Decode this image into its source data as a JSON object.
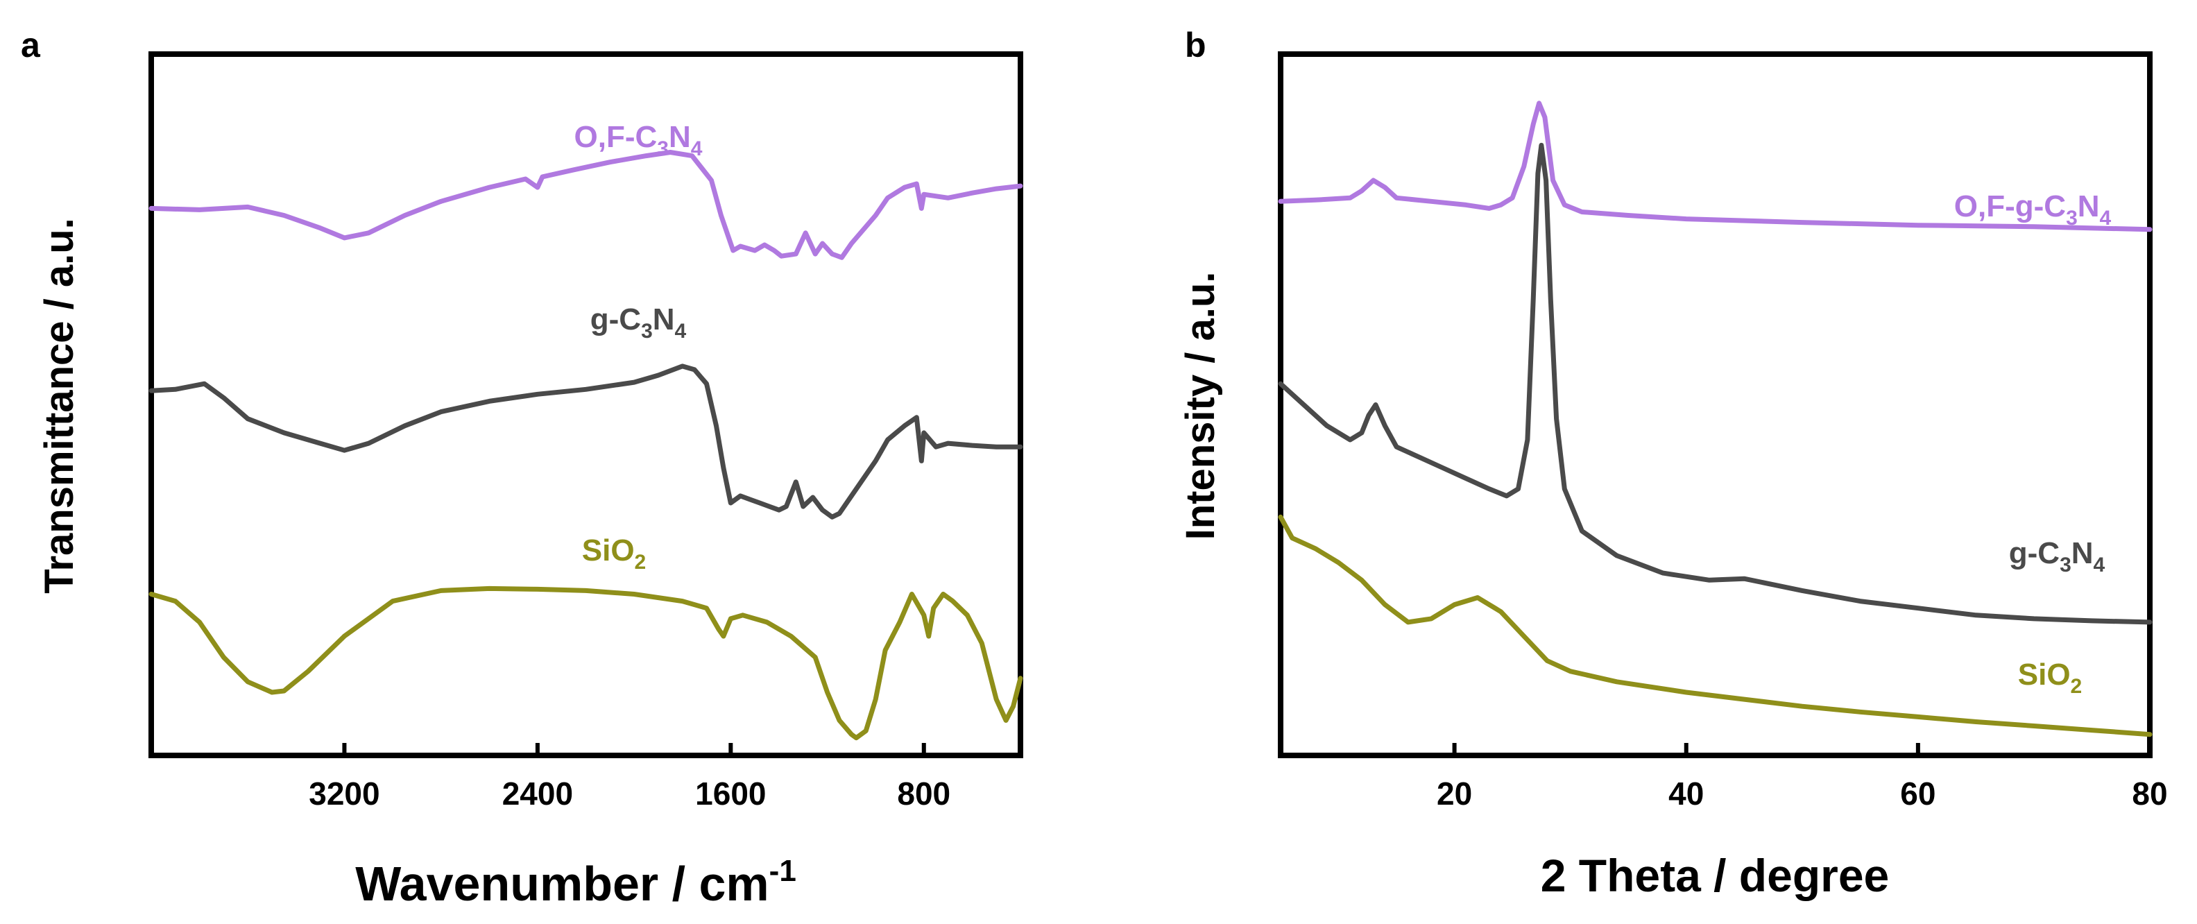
{
  "colors": {
    "purple": "#b079e0",
    "gray": "#4a4a4a",
    "olive": "#8f8f1a",
    "axis": "#000000"
  },
  "chart_data": [
    {
      "type": "line",
      "panel_label": "a",
      "xlabel": "Wavenumber / cm",
      "xlabel_sup": "-1",
      "ylabel": "Transmittance / a.u.",
      "xlim": [
        4000,
        400
      ],
      "ylim": [
        0,
        10
      ],
      "xticks": [
        3200,
        2400,
        1600,
        800
      ],
      "tick_labels": [
        "3200",
        "2400",
        "1600",
        "800"
      ],
      "yticks_shown": false,
      "series": [
        {
          "name": "O,F-C3N4",
          "label_parts": [
            "O,F-C",
            "3",
            "N",
            "4"
          ],
          "color_key": "purple",
          "points": [
            [
              4000,
              7.8
            ],
            [
              3800,
              7.78
            ],
            [
              3600,
              7.82
            ],
            [
              3450,
              7.7
            ],
            [
              3300,
              7.52
            ],
            [
              3200,
              7.38
            ],
            [
              3100,
              7.45
            ],
            [
              2950,
              7.7
            ],
            [
              2800,
              7.9
            ],
            [
              2600,
              8.1
            ],
            [
              2450,
              8.22
            ],
            [
              2400,
              8.1
            ],
            [
              2380,
              8.25
            ],
            [
              2250,
              8.35
            ],
            [
              2100,
              8.46
            ],
            [
              1950,
              8.55
            ],
            [
              1850,
              8.6
            ],
            [
              1760,
              8.55
            ],
            [
              1680,
              8.2
            ],
            [
              1640,
              7.7
            ],
            [
              1590,
              7.2
            ],
            [
              1560,
              7.26
            ],
            [
              1500,
              7.2
            ],
            [
              1460,
              7.28
            ],
            [
              1420,
              7.2
            ],
            [
              1390,
              7.12
            ],
            [
              1330,
              7.15
            ],
            [
              1290,
              7.45
            ],
            [
              1250,
              7.15
            ],
            [
              1220,
              7.3
            ],
            [
              1180,
              7.15
            ],
            [
              1140,
              7.1
            ],
            [
              1100,
              7.3
            ],
            [
              1000,
              7.7
            ],
            [
              950,
              7.95
            ],
            [
              880,
              8.1
            ],
            [
              830,
              8.15
            ],
            [
              810,
              7.8
            ],
            [
              800,
              8.0
            ],
            [
              700,
              7.95
            ],
            [
              600,
              8.02
            ],
            [
              500,
              8.08
            ],
            [
              400,
              8.12
            ]
          ]
        },
        {
          "name": "g-C3N4",
          "label_parts": [
            "g-C",
            "3",
            "N",
            "4"
          ],
          "color_key": "gray",
          "points": [
            [
              4000,
              5.2
            ],
            [
              3900,
              5.22
            ],
            [
              3780,
              5.3
            ],
            [
              3700,
              5.1
            ],
            [
              3600,
              4.8
            ],
            [
              3450,
              4.6
            ],
            [
              3300,
              4.45
            ],
            [
              3200,
              4.35
            ],
            [
              3100,
              4.45
            ],
            [
              2950,
              4.7
            ],
            [
              2800,
              4.9
            ],
            [
              2600,
              5.05
            ],
            [
              2400,
              5.15
            ],
            [
              2200,
              5.22
            ],
            [
              2000,
              5.32
            ],
            [
              1900,
              5.42
            ],
            [
              1800,
              5.55
            ],
            [
              1750,
              5.5
            ],
            [
              1700,
              5.3
            ],
            [
              1660,
              4.7
            ],
            [
              1630,
              4.1
            ],
            [
              1600,
              3.6
            ],
            [
              1560,
              3.7
            ],
            [
              1520,
              3.65
            ],
            [
              1480,
              3.6
            ],
            [
              1440,
              3.55
            ],
            [
              1400,
              3.5
            ],
            [
              1370,
              3.55
            ],
            [
              1330,
              3.9
            ],
            [
              1300,
              3.55
            ],
            [
              1260,
              3.68
            ],
            [
              1220,
              3.5
            ],
            [
              1180,
              3.4
            ],
            [
              1150,
              3.45
            ],
            [
              1100,
              3.7
            ],
            [
              1000,
              4.2
            ],
            [
              950,
              4.5
            ],
            [
              880,
              4.7
            ],
            [
              830,
              4.82
            ],
            [
              810,
              4.2
            ],
            [
              800,
              4.6
            ],
            [
              750,
              4.4
            ],
            [
              700,
              4.45
            ],
            [
              600,
              4.42
            ],
            [
              500,
              4.4
            ],
            [
              400,
              4.4
            ]
          ]
        },
        {
          "name": "SiO2",
          "label_parts": [
            "SiO",
            "2"
          ],
          "color_key": "olive",
          "points": [
            [
              4000,
              2.3
            ],
            [
              3900,
              2.2
            ],
            [
              3800,
              1.9
            ],
            [
              3700,
              1.4
            ],
            [
              3600,
              1.05
            ],
            [
              3500,
              0.9
            ],
            [
              3450,
              0.92
            ],
            [
              3350,
              1.2
            ],
            [
              3200,
              1.7
            ],
            [
              3000,
              2.2
            ],
            [
              2800,
              2.35
            ],
            [
              2600,
              2.38
            ],
            [
              2400,
              2.37
            ],
            [
              2200,
              2.35
            ],
            [
              2000,
              2.3
            ],
            [
              1800,
              2.2
            ],
            [
              1700,
              2.1
            ],
            [
              1650,
              1.8
            ],
            [
              1630,
              1.7
            ],
            [
              1600,
              1.95
            ],
            [
              1550,
              2.0
            ],
            [
              1450,
              1.9
            ],
            [
              1350,
              1.7
            ],
            [
              1250,
              1.4
            ],
            [
              1200,
              0.9
            ],
            [
              1150,
              0.5
            ],
            [
              1100,
              0.3
            ],
            [
              1080,
              0.25
            ],
            [
              1040,
              0.35
            ],
            [
              1000,
              0.8
            ],
            [
              960,
              1.5
            ],
            [
              900,
              1.9
            ],
            [
              850,
              2.3
            ],
            [
              800,
              2.0
            ],
            [
              780,
              1.7
            ],
            [
              760,
              2.1
            ],
            [
              720,
              2.3
            ],
            [
              680,
              2.2
            ],
            [
              620,
              2.0
            ],
            [
              560,
              1.6
            ],
            [
              500,
              0.8
            ],
            [
              460,
              0.5
            ],
            [
              430,
              0.7
            ],
            [
              400,
              1.1
            ]
          ]
        }
      ]
    },
    {
      "type": "line",
      "panel_label": "b",
      "xlabel": "2 Theta / degree",
      "ylabel": "Intensity / a.u.",
      "xlim": [
        5,
        80
      ],
      "ylim": [
        0,
        10
      ],
      "xticks": [
        20,
        40,
        60,
        80
      ],
      "tick_labels": [
        "20",
        "40",
        "60",
        "80"
      ],
      "yticks_shown": false,
      "series": [
        {
          "name": "O,F-g-C3N4",
          "label_parts": [
            "O,F-g-C",
            "3",
            "N",
            "4"
          ],
          "color_key": "purple",
          "points": [
            [
              5,
              7.9
            ],
            [
              8,
              7.92
            ],
            [
              11,
              7.95
            ],
            [
              12,
              8.05
            ],
            [
              13,
              8.2
            ],
            [
              14,
              8.1
            ],
            [
              15,
              7.95
            ],
            [
              18,
              7.9
            ],
            [
              21,
              7.85
            ],
            [
              23,
              7.8
            ],
            [
              24,
              7.85
            ],
            [
              25,
              7.95
            ],
            [
              26,
              8.4
            ],
            [
              26.8,
              9.0
            ],
            [
              27.3,
              9.3
            ],
            [
              27.8,
              9.1
            ],
            [
              28.5,
              8.2
            ],
            [
              29.5,
              7.85
            ],
            [
              31,
              7.75
            ],
            [
              35,
              7.7
            ],
            [
              40,
              7.65
            ],
            [
              50,
              7.6
            ],
            [
              60,
              7.56
            ],
            [
              70,
              7.54
            ],
            [
              80,
              7.5
            ]
          ]
        },
        {
          "name": "g-C3N4",
          "label_parts": [
            "g-C",
            "3",
            "N",
            "4"
          ],
          "color_key": "gray",
          "points": [
            [
              5,
              5.3
            ],
            [
              7,
              5.0
            ],
            [
              9,
              4.7
            ],
            [
              11,
              4.5
            ],
            [
              12,
              4.6
            ],
            [
              12.6,
              4.85
            ],
            [
              13.2,
              5.0
            ],
            [
              14,
              4.7
            ],
            [
              15,
              4.4
            ],
            [
              17,
              4.25
            ],
            [
              19,
              4.1
            ],
            [
              21,
              3.95
            ],
            [
              23,
              3.8
            ],
            [
              24.5,
              3.7
            ],
            [
              25.5,
              3.8
            ],
            [
              26.3,
              4.5
            ],
            [
              26.8,
              6.5
            ],
            [
              27.2,
              8.3
            ],
            [
              27.5,
              8.7
            ],
            [
              27.9,
              8.2
            ],
            [
              28.3,
              6.5
            ],
            [
              28.8,
              4.8
            ],
            [
              29.5,
              3.8
            ],
            [
              31,
              3.2
            ],
            [
              34,
              2.85
            ],
            [
              38,
              2.6
            ],
            [
              42,
              2.5
            ],
            [
              45,
              2.52
            ],
            [
              50,
              2.35
            ],
            [
              55,
              2.2
            ],
            [
              60,
              2.1
            ],
            [
              65,
              2.0
            ],
            [
              70,
              1.95
            ],
            [
              75,
              1.92
            ],
            [
              80,
              1.9
            ]
          ]
        },
        {
          "name": "SiO2",
          "label_parts": [
            "SiO",
            "2"
          ],
          "color_key": "olive",
          "points": [
            [
              5,
              3.4
            ],
            [
              6,
              3.1
            ],
            [
              8,
              2.95
            ],
            [
              10,
              2.75
            ],
            [
              12,
              2.5
            ],
            [
              14,
              2.15
            ],
            [
              16,
              1.9
            ],
            [
              18,
              1.95
            ],
            [
              20,
              2.15
            ],
            [
              22,
              2.25
            ],
            [
              24,
              2.05
            ],
            [
              26,
              1.7
            ],
            [
              28,
              1.35
            ],
            [
              30,
              1.2
            ],
            [
              34,
              1.05
            ],
            [
              40,
              0.9
            ],
            [
              45,
              0.8
            ],
            [
              50,
              0.7
            ],
            [
              55,
              0.62
            ],
            [
              60,
              0.55
            ],
            [
              65,
              0.48
            ],
            [
              70,
              0.42
            ],
            [
              75,
              0.36
            ],
            [
              80,
              0.3
            ]
          ]
        }
      ]
    }
  ]
}
